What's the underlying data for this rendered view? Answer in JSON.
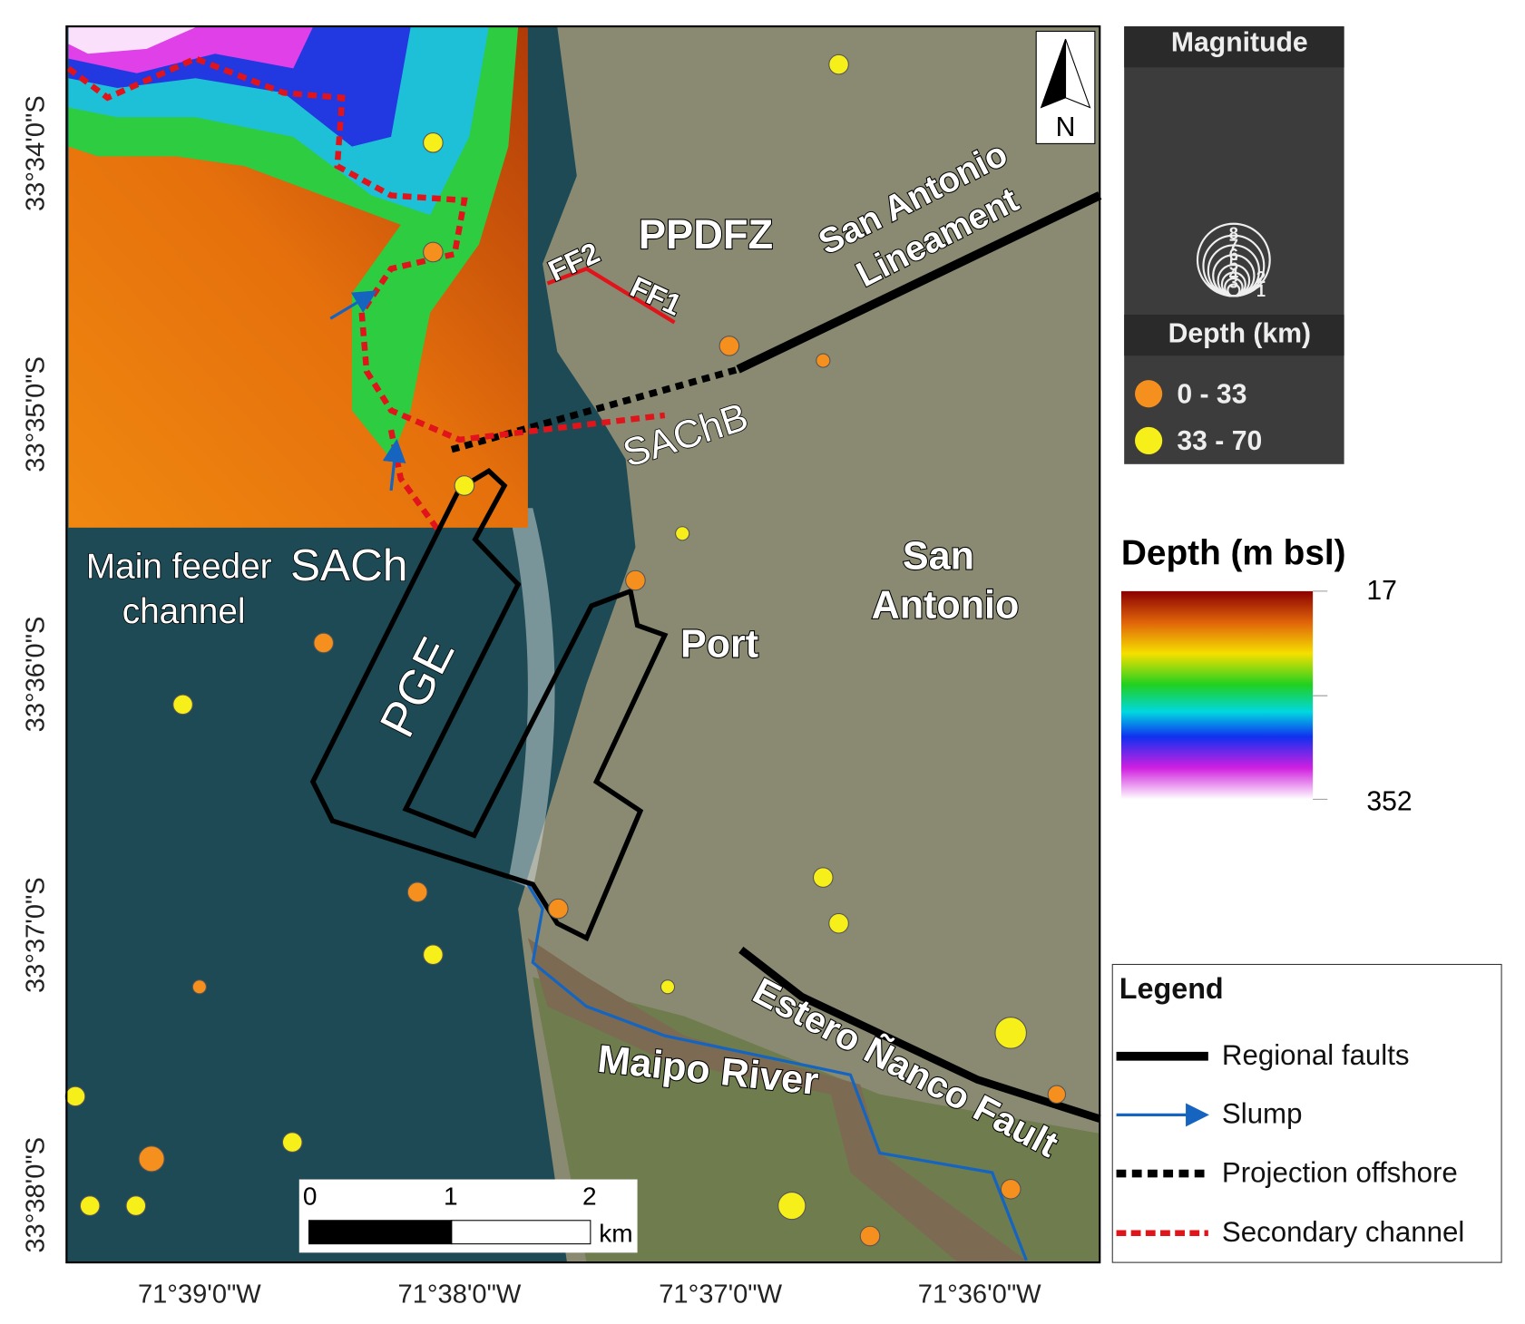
{
  "map": {
    "north": "N",
    "lat_labels": [
      "33°34'0\"S",
      "33°35'0\"S",
      "33°36'0\"S",
      "33°37'0\"S",
      "33°38'0\"S"
    ],
    "lon_labels": [
      "71°39'0\"W",
      "71°38'0\"W",
      "71°37'0\"W",
      "71°36'0\"W"
    ],
    "labels": {
      "ppdfz": "PPDFZ",
      "lineament": [
        "San Antonio",
        "Lineament"
      ],
      "ff2": "FF2",
      "ff1": "FF1",
      "sachb": "SAChB",
      "main_feeder": [
        "Main feeder",
        "channel"
      ],
      "sach": "SACh",
      "pge": "PGE",
      "port": "Port",
      "san_antonio": [
        "San",
        "Antonio"
      ],
      "estero": "Estero Ñanco Fault",
      "maipo": "Maipo River"
    }
  },
  "magnitude_legend": {
    "title": "Magnitude",
    "sizes": [
      "8",
      "7",
      "6",
      "5",
      "4",
      "3",
      "2",
      "1"
    ]
  },
  "depth_legend": {
    "title": "Depth (km)",
    "classes": [
      "0 - 33",
      "33 - 70"
    ]
  },
  "colorbar": {
    "title": "Depth (m bsl)",
    "top": 17,
    "bottom": 352
  },
  "scale_bar": {
    "ticks": [
      "0",
      "1",
      "2"
    ],
    "unit": "km"
  },
  "legend": {
    "title": "Legend",
    "items": [
      "Regional faults",
      "Slump",
      "Projection offshore",
      "Secondary channel"
    ]
  }
}
